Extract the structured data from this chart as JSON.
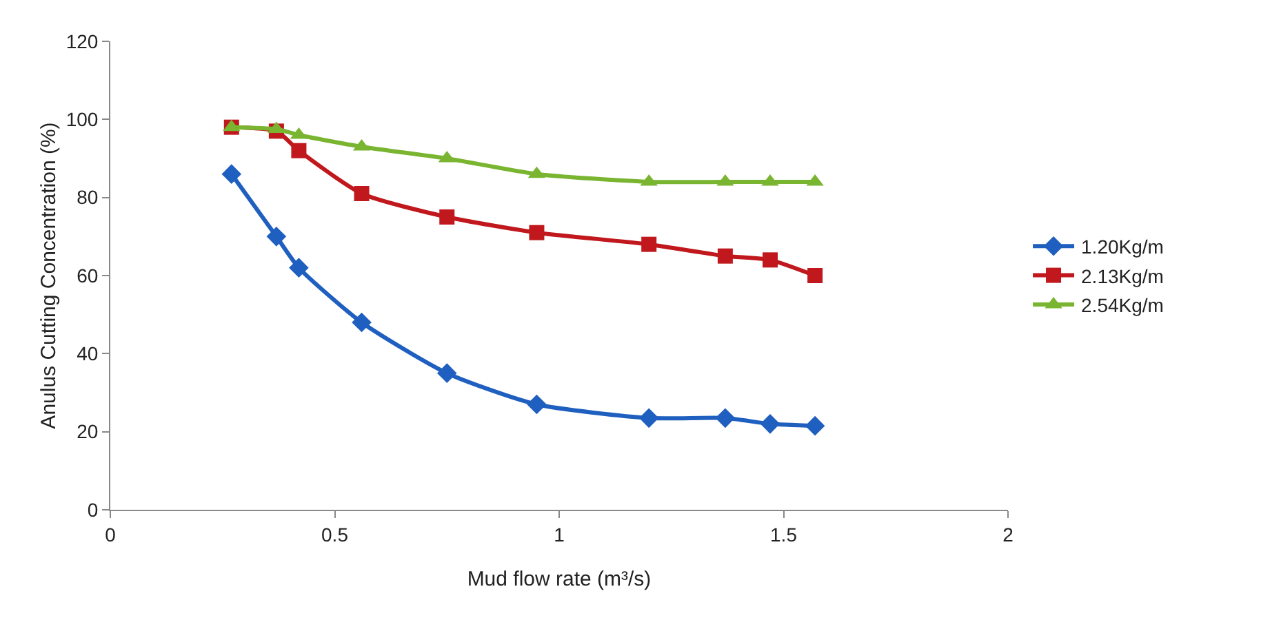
{
  "chart_data": {
    "type": "line",
    "xlabel": "Mud flow rate (m³/s)",
    "ylabel": "Anulus Cutting Concentration (%)",
    "x": [
      0.27,
      0.37,
      0.42,
      0.56,
      0.75,
      0.95,
      1.2,
      1.37,
      1.47,
      1.57
    ],
    "series": [
      {
        "name": "1.20Kg/m",
        "color": "#1f5fbf",
        "marker": "diamond",
        "values": [
          86,
          70,
          62,
          48,
          35,
          27,
          23.5,
          23.5,
          22,
          21.5
        ]
      },
      {
        "name": "2.13Kg/m",
        "color": "#c0181c",
        "marker": "square",
        "values": [
          98,
          97,
          92,
          81,
          75,
          71,
          68,
          65,
          64,
          60
        ]
      },
      {
        "name": "2.54Kg/m",
        "color": "#79b530",
        "marker": "triangle",
        "values": [
          98,
          97.5,
          96,
          93,
          90,
          86,
          84,
          84,
          84,
          84
        ]
      }
    ],
    "xlim": [
      0,
      2
    ],
    "xticks": [
      0,
      0.5,
      1,
      1.5,
      2
    ],
    "ylim": [
      0,
      120
    ],
    "yticks": [
      0,
      20,
      40,
      60,
      80,
      100,
      120
    ],
    "grid": false,
    "legend": "right",
    "line_style": "solid"
  }
}
